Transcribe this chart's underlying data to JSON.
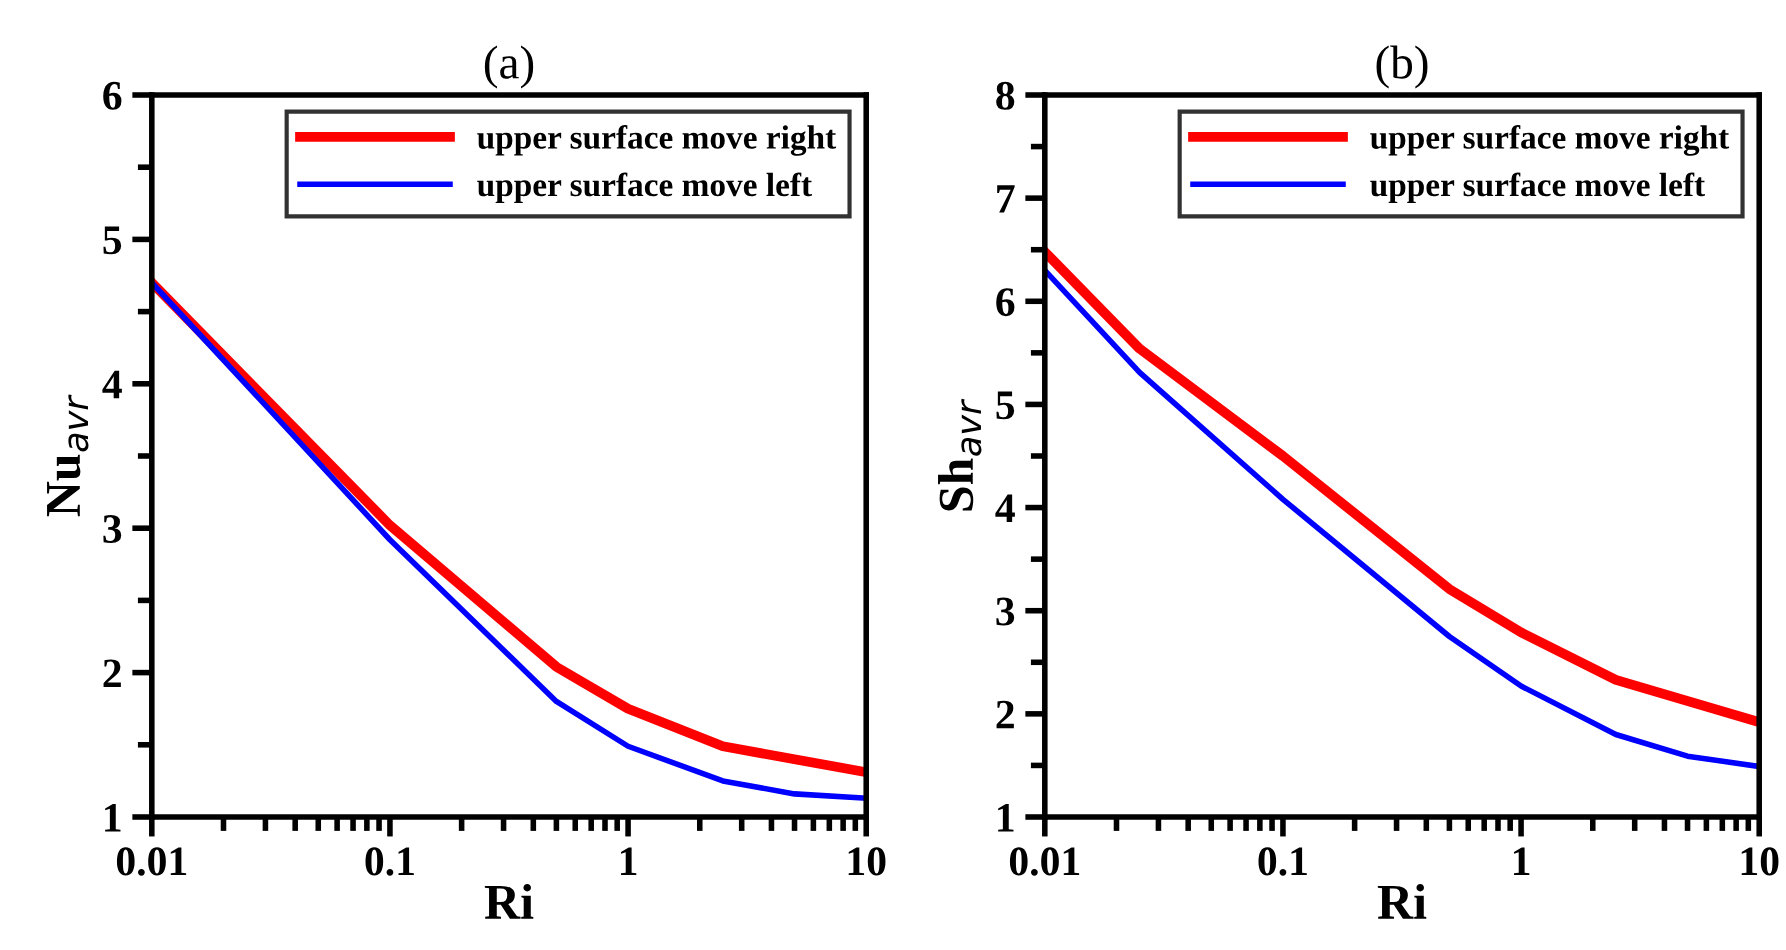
{
  "chart_data": [
    {
      "type": "line",
      "title": "(a)",
      "xlabel": "Ri",
      "ylabel": "Nu$_{avr}$",
      "log": "x",
      "xlim": [
        0.01,
        10
      ],
      "xticks": [
        0.01,
        0.1,
        1,
        10
      ],
      "ylim": [
        1,
        6
      ],
      "yticks": [
        1,
        {
          "value": 1.5,
          "label": null
        },
        2,
        {
          "value": 2.5,
          "label": null
        },
        3,
        {
          "value": 3.5,
          "label": null
        },
        4,
        {
          "value": 4.5,
          "label": null
        },
        5,
        {
          "value": 5.5,
          "label": null
        },
        6
      ],
      "legend": "top right",
      "grid": false,
      "series": [
        {
          "name": "upper surface move right",
          "color": "#ff0000",
          "x": [
            0.01,
            0.1,
            0.5,
            1,
            2.5,
            10
          ],
          "values": [
            4.7,
            3.02,
            2.04,
            1.75,
            1.49,
            1.31
          ]
        },
        {
          "name": "upper surface move left",
          "color": "#0000ff",
          "x": [
            0.01,
            0.1,
            0.5,
            1,
            2.5,
            5,
            10
          ],
          "values": [
            4.7,
            2.92,
            1.8,
            1.49,
            1.25,
            1.16,
            1.13
          ]
        }
      ]
    },
    {
      "type": "line",
      "title": "(b)",
      "xlabel": "Ri",
      "ylabel": "Sh$_{avr}$",
      "log": "x",
      "xlim": [
        0.01,
        10
      ],
      "xticks": [
        0.01,
        0.1,
        1,
        10
      ],
      "ylim": [
        1,
        8
      ],
      "yticks": [
        1,
        {
          "value": 1.5,
          "label": null
        },
        2,
        {
          "value": 2.5,
          "label": null
        },
        3,
        {
          "value": 3.5,
          "label": null
        },
        4,
        {
          "value": 4.5,
          "label": null
        },
        5,
        {
          "value": 5.5,
          "label": null
        },
        6,
        {
          "value": 6.5,
          "label": null
        },
        7,
        {
          "value": 7.5,
          "label": null
        },
        8
      ],
      "legend": "top right",
      "grid": false,
      "series": [
        {
          "name": "upper surface move right",
          "color": "#ff0000",
          "x": [
            0.01,
            0.025,
            0.1,
            0.5,
            1,
            2.5,
            10
          ],
          "values": [
            6.48,
            5.54,
            4.5,
            3.21,
            2.79,
            2.33,
            1.92
          ]
        },
        {
          "name": "upper surface move left",
          "color": "#0000ff",
          "x": [
            0.01,
            0.025,
            0.1,
            0.5,
            1,
            2.5,
            5,
            10
          ],
          "values": [
            6.3,
            5.31,
            4.08,
            2.75,
            2.27,
            1.8,
            1.59,
            1.49
          ]
        }
      ]
    }
  ]
}
